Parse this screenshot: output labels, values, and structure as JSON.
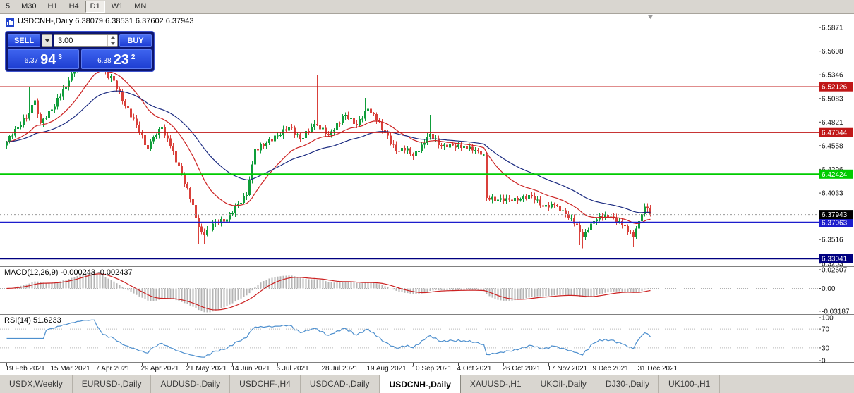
{
  "toolbar": {
    "timeframes": [
      "5",
      "M30",
      "H1",
      "H4",
      "D1",
      "W1",
      "MN"
    ],
    "active": "D1"
  },
  "chart": {
    "info_line": "USDCNH-,Daily 6.38079 6.38531 6.37602 6.37943",
    "indicators": {
      "macd_text": "MACD(12,26,9) -0.000243 -0.002437",
      "rsi_text": "RSI(14) 51.6233"
    },
    "trade_panel": {
      "sell_label": "SELL",
      "buy_label": "BUY",
      "volume": "3.00",
      "sell_small": "6.37",
      "sell_big": "94",
      "sell_sup": "3",
      "buy_small": "6.38",
      "buy_big": "23",
      "buy_sup": "2"
    }
  },
  "chart_data": {
    "type": "candlestick",
    "symbol": "USDCNH-",
    "timeframe": "Daily",
    "ohlc_display": {
      "open": "6.38079",
      "high": "6.38531",
      "low": "6.37602",
      "close": "6.37943"
    },
    "bull_color": "#0f9d3a",
    "bear_color": "#d9403a",
    "y_axis": {
      "ticks": [
        "6.5871",
        "6.5608",
        "6.5346",
        "6.5083",
        "6.4821",
        "6.4558",
        "6.4296",
        "6.4033",
        "6.3516",
        "6.3253"
      ],
      "view_range": [
        6.322,
        6.602
      ]
    },
    "x_axis": {
      "labels": [
        "19 Feb 2021",
        "15 Mar 2021",
        "7 Apr 2021",
        "29 Apr 2021",
        "21 May 2021",
        "14 Jun 2021",
        "6 Jul 2021",
        "28 Jul 2021",
        "19 Aug 2021",
        "10 Sep 2021",
        "4 Oct 2021",
        "26 Oct 2021",
        "17 Nov 2021",
        "9 Dec 2021",
        "31 Dec 2021"
      ],
      "candles_per_label": 16,
      "candle_spacing": 4,
      "candle_width": 3
    },
    "levels": [
      {
        "price": 6.52126,
        "label": "6.52126",
        "color": "#c01818",
        "width": 1.3
      },
      {
        "price": 6.47044,
        "label": "6.47044",
        "color": "#c01818",
        "width": 1.3
      },
      {
        "price": 6.42424,
        "label": "6.42424",
        "color": "#00cc00",
        "width": 2
      },
      {
        "price": 6.37063,
        "label": "6.37063",
        "color": "#1c1ccc",
        "width": 2
      },
      {
        "price": 6.33041,
        "label": "6.33041",
        "color": "#000080",
        "width": 2
      }
    ],
    "current_price": {
      "value": 6.37943,
      "label": "6.37943",
      "label_bg": "#000000"
    },
    "moving_averages": [
      {
        "period": 20,
        "color": "#cc2222"
      },
      {
        "period": 45,
        "color": "#1a2a80"
      }
    ],
    "closes": [
      6.46,
      6.4665,
      6.467,
      6.4745,
      6.477,
      6.479,
      6.4865,
      6.486,
      6.492,
      6.501,
      6.506,
      6.491,
      6.481,
      6.486,
      6.487,
      6.494,
      6.496,
      6.499,
      6.509,
      6.51,
      6.519,
      6.521,
      6.528,
      6.536,
      6.539,
      6.549,
      6.552,
      6.5615,
      6.566,
      6.5655,
      6.571,
      6.571,
      6.56,
      6.552,
      6.54,
      6.539,
      6.531,
      6.533,
      6.528,
      6.519,
      6.516,
      6.505,
      6.5,
      6.497,
      6.4875,
      6.486,
      6.479,
      6.47,
      6.468,
      6.4565,
      6.452,
      6.461,
      6.466,
      6.4675,
      6.4745,
      6.476,
      6.467,
      6.464,
      6.455,
      6.4495,
      6.4375,
      6.4335,
      6.424,
      6.4135,
      6.409,
      6.3965,
      6.39,
      6.376,
      6.366,
      6.36,
      6.357,
      6.3625,
      6.362,
      6.3695,
      6.371,
      6.37,
      6.3745,
      6.3715,
      6.374,
      6.3805,
      6.3805,
      6.389,
      6.391,
      6.3925,
      6.3995,
      6.401,
      6.418,
      6.435,
      6.452,
      6.4505,
      6.4575,
      6.4555,
      6.459,
      6.463,
      6.461,
      6.467,
      6.467,
      6.4675,
      6.474,
      6.4725,
      6.477,
      6.4755,
      6.468,
      6.4685,
      6.463,
      6.4645,
      6.472,
      6.4715,
      6.477,
      6.48,
      6.479,
      6.474,
      6.4755,
      6.469,
      6.468,
      6.4717,
      6.4735,
      6.481,
      6.4807,
      6.4885,
      6.49,
      6.4855,
      6.4865,
      6.48,
      6.479,
      6.4855,
      6.486,
      6.4945,
      6.497,
      6.492,
      6.491,
      6.4838,
      6.4825,
      6.4735,
      6.47,
      6.467,
      6.458,
      6.457,
      6.45,
      6.4495,
      6.4535,
      6.4505,
      6.453,
      6.4465,
      6.444,
      6.4495,
      6.4495,
      6.457,
      6.459,
      6.466,
      6.469,
      6.4635,
      6.464,
      6.4565,
      6.455,
      6.457,
      6.454,
      6.4575,
      6.456,
      6.454,
      6.457,
      6.4535,
      6.455,
      6.4525,
      6.4545,
      6.4505,
      6.451,
      6.45,
      6.446,
      6.446,
      6.398,
      6.396,
      6.399,
      6.3945,
      6.396,
      6.3975,
      6.3945,
      6.3975,
      6.396,
      6.3945,
      6.398,
      6.395,
      6.397,
      6.3995,
      6.397,
      6.401,
      6.4,
      6.3955,
      6.396,
      6.3895,
      6.388,
      6.39,
      6.3875,
      6.391,
      6.39,
      6.389,
      6.3835,
      6.384,
      6.38,
      6.3755,
      6.3755,
      6.3695,
      6.368,
      6.36,
      6.355,
      6.3605,
      6.362,
      6.3695,
      6.372,
      6.374,
      6.378,
      6.376,
      6.379,
      6.3755,
      6.377,
      6.3765,
      6.371,
      6.372,
      6.368,
      6.3665,
      6.3605,
      6.36,
      6.355,
      6.364,
      6.372,
      6.38,
      6.388,
      6.386,
      6.3794
    ],
    "spikes": {
      "high": {
        "8": 6.521,
        "10": 6.537,
        "30": 6.578,
        "110": 6.534,
        "127": 6.509,
        "150": 6.49,
        "185": 6.408,
        "226": 6.392
      },
      "low": {
        "50": 6.421,
        "68": 6.347,
        "70": 6.3465,
        "203": 6.3455,
        "204": 6.342,
        "222": 6.344
      }
    },
    "macd": {
      "name": "MACD(12,26,9)",
      "fast": 12,
      "slow": 26,
      "signal": 9,
      "value_main": "-0.000243",
      "value_signal": "-0.002437",
      "axis": [
        "0.02607",
        "0.00",
        "-0.03187"
      ],
      "view_range": [
        -0.036,
        0.03
      ],
      "hist_color": "#b4b4b4",
      "signal_color": "#cc2222"
    },
    "rsi": {
      "name": "RSI(14)",
      "period": 14,
      "value": "51.6233",
      "axis": [
        "100",
        "70",
        "30",
        "0"
      ],
      "dotted_levels": [
        70,
        30
      ],
      "line_color": "#4d8fce"
    }
  },
  "tabs": {
    "items": [
      "USDX,Weekly",
      "EURUSD-,Daily",
      "AUDUSD-,Daily",
      "USDCHF-,H4",
      "USDCAD-,Daily",
      "USDCNH-,Daily",
      "XAUUSD-,H1",
      "UKOil-,Daily",
      "DJ30-,Daily",
      "UK100-,H1"
    ],
    "active": "USDCNH-,Daily"
  }
}
